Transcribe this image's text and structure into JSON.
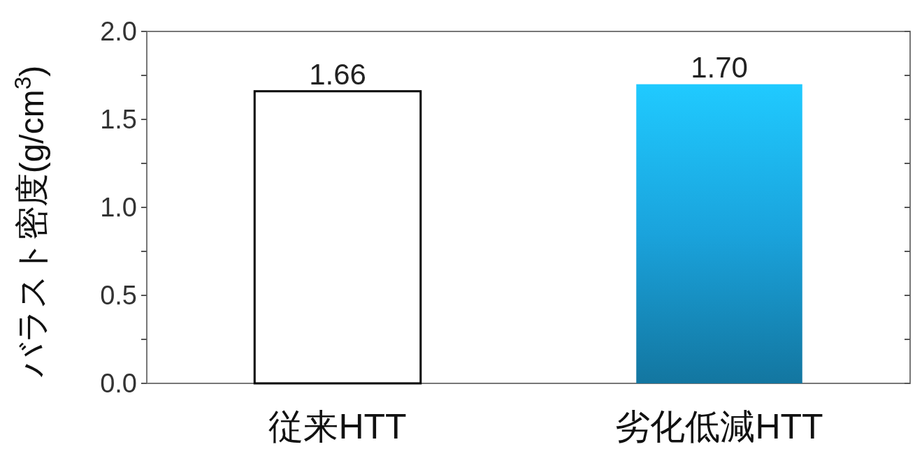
{
  "chart_data": {
    "type": "bar",
    "ylabel": "バラスト密度(g/cm$^{3}$)",
    "categories": [
      "従来HTT",
      "劣化低減HTT"
    ],
    "values": [
      1.66,
      1.7
    ],
    "colors": [
      "#ffffff",
      "#1aa3dc"
    ],
    "value_labels": [
      "1.66",
      "1.70"
    ],
    "ylim": [
      0,
      2.0
    ],
    "yticks": [
      {
        "value": 0,
        "label": "0.0"
      },
      {
        "value": 0.25,
        "label": null
      },
      {
        "value": 0.5,
        "label": "0.5"
      },
      {
        "value": 0.75,
        "label": null
      },
      {
        "value": 1,
        "label": "1.0"
      },
      {
        "value": 1.25,
        "label": null
      },
      {
        "value": 1.5,
        "label": "1.5"
      },
      {
        "value": 1.75,
        "label": null
      },
      {
        "value": 2,
        "label": "2.0"
      }
    ],
    "grid": false
  }
}
